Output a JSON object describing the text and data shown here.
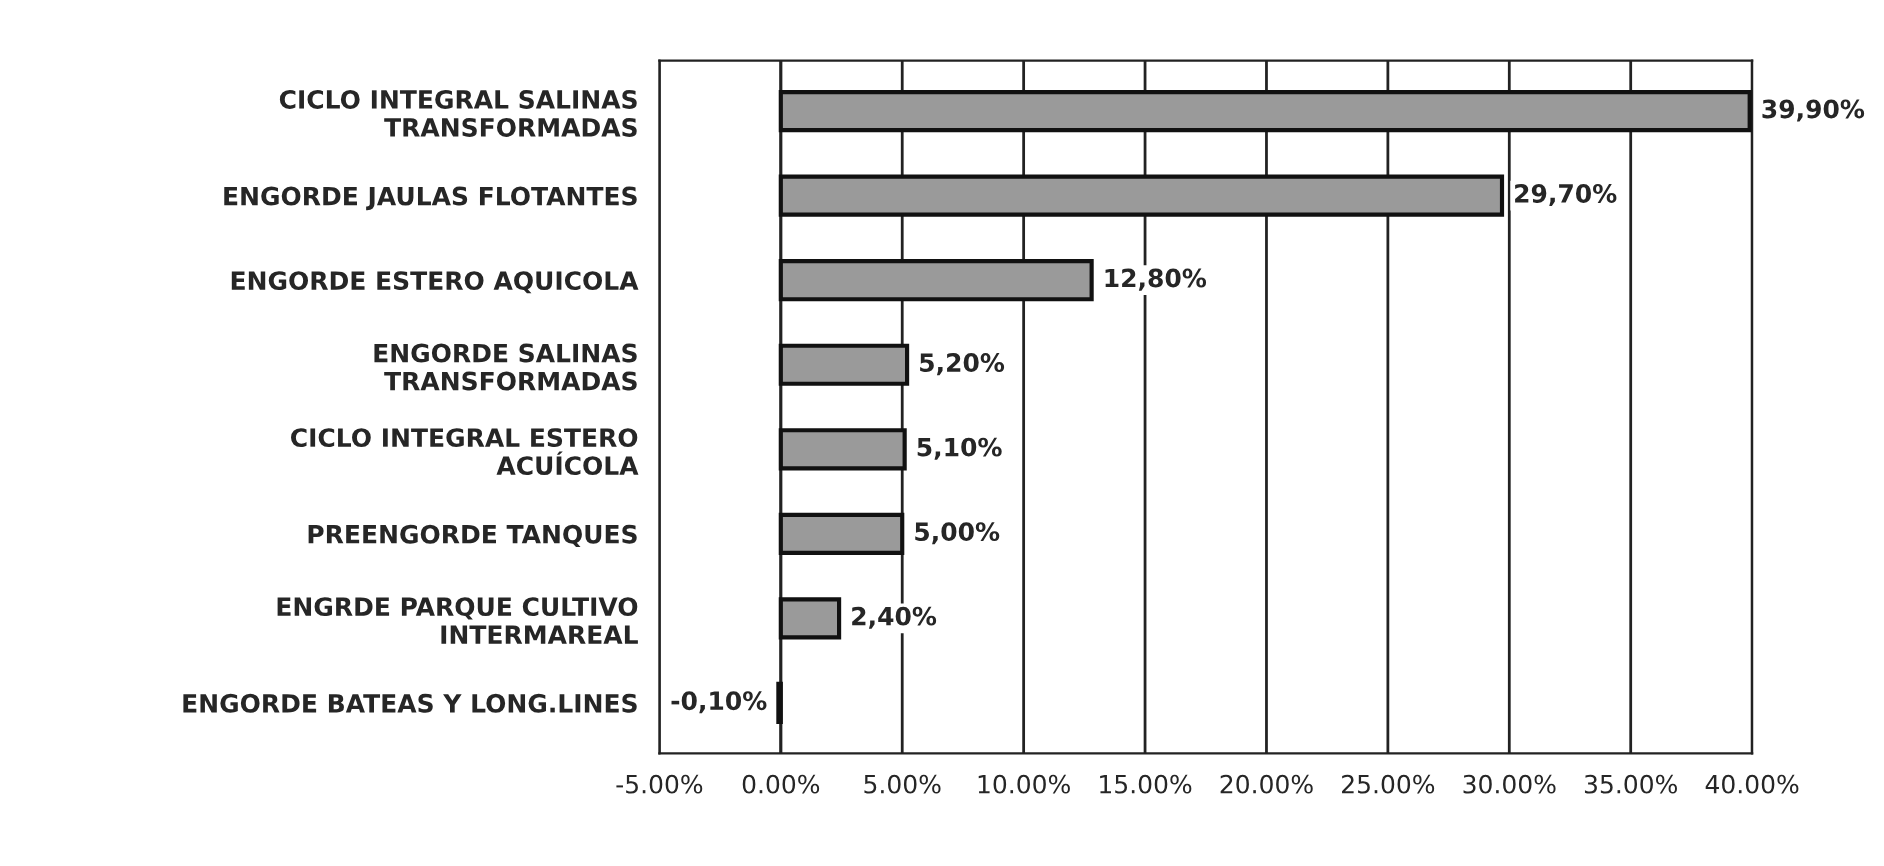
{
  "chart_data": {
    "type": "bar",
    "orientation": "horizontal",
    "categories": [
      "CICLO INTEGRAL SALINAS\nTRANSFORMADAS",
      "ENGORDE JAULAS FLOTANTES",
      "ENGORDE ESTERO AQUICOLA",
      "ENGORDE SALINAS\nTRANSFORMADAS",
      "CICLO INTEGRAL ESTERO\nACUÍCOLA",
      "PREENGORDE TANQUES",
      "ENGRDE PARQUE CULTIVO\nINTERMAREAL",
      "ENGORDE BATEAS Y LONG.LINES"
    ],
    "values": [
      39.9,
      29.7,
      12.8,
      5.2,
      5.1,
      5.0,
      2.4,
      -0.1
    ],
    "value_labels": [
      "39,90%",
      "29,70%",
      "12,80%",
      "5,20%",
      "5,10%",
      "5,00%",
      "2,40%",
      "-0,10%"
    ],
    "color": "#9a9a9a",
    "xlim": [
      -5,
      40
    ],
    "xticks": [
      {
        "value": -5,
        "label": "-5.00%"
      },
      {
        "value": 0,
        "label": "0.00%"
      },
      {
        "value": 5,
        "label": "5.00%"
      },
      {
        "value": 10,
        "label": "10.00%"
      },
      {
        "value": 15,
        "label": "15.00%"
      },
      {
        "value": 20,
        "label": "20.00%"
      },
      {
        "value": 25,
        "label": "25.00%"
      },
      {
        "value": 30,
        "label": "30.00%"
      },
      {
        "value": 35,
        "label": "35.00%"
      },
      {
        "value": 40,
        "label": "40.00%"
      }
    ],
    "grid": "x",
    "legend": false
  }
}
